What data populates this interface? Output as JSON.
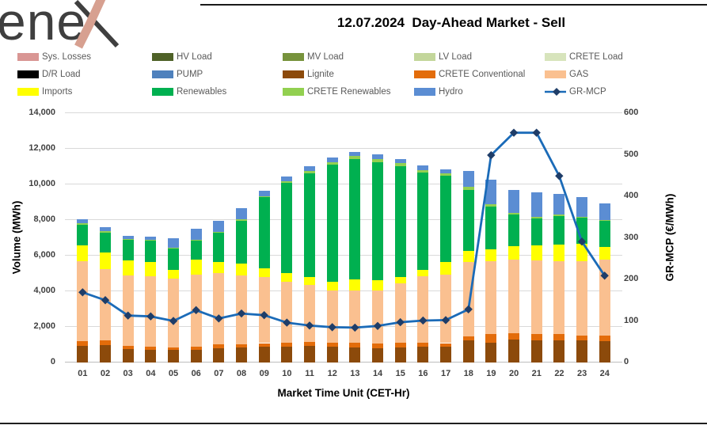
{
  "logo": {
    "brand": "enex"
  },
  "header": {
    "title": "12.07.2024  Day-Ahead Market - Sell"
  },
  "colors": {
    "grid": "#d9d9d9",
    "axis_text": "#3f3f3f",
    "legend_text": "#595959",
    "logo_pink": "#d7a090",
    "logo_dark": "#3f3f3f"
  },
  "legend": {
    "items": [
      {
        "label": "Sys. Losses",
        "color": "#D99694",
        "kind": "box"
      },
      {
        "label": "HV Load",
        "color": "#4F6228",
        "kind": "box"
      },
      {
        "label": "MV Load",
        "color": "#77933C",
        "kind": "box"
      },
      {
        "label": "LV Load",
        "color": "#C3D69B",
        "kind": "box"
      },
      {
        "label": "CRETE Load",
        "color": "#D7E4BC",
        "kind": "box"
      },
      {
        "label": "D/R Load",
        "color": "#000000",
        "kind": "box"
      },
      {
        "label": "PUMP",
        "color": "#4F81BD",
        "kind": "box"
      },
      {
        "label": "Lignite",
        "color": "#8C4A0B",
        "kind": "box"
      },
      {
        "label": "CRETE Conventional",
        "color": "#E36C0A",
        "kind": "box"
      },
      {
        "label": "GAS",
        "color": "#FAC090",
        "kind": "box"
      },
      {
        "label": "Imports",
        "color": "#FFFF00",
        "kind": "box"
      },
      {
        "label": "Renewables",
        "color": "#00B050",
        "kind": "box"
      },
      {
        "label": "CRETE Renewables",
        "color": "#92D050",
        "kind": "box"
      },
      {
        "label": "Hydro",
        "color": "#5B8DD3",
        "kind": "box"
      },
      {
        "label": "GR-MCP",
        "color": "#1B6BB8",
        "marker_color": "#1F3D68",
        "kind": "line"
      }
    ]
  },
  "chart_data": {
    "type": "bar",
    "subtype": "stacked-bars-with-line",
    "title": "12.07.2024  Day-Ahead Market - Sell",
    "xlabel": "Market Time Unit (CET-Hr)",
    "y_left": {
      "label": "Volume (MWh)",
      "min": 0,
      "max": 14000,
      "tick_step": 2000,
      "tick_values": [
        0,
        2000,
        4000,
        6000,
        8000,
        10000,
        12000,
        14000
      ],
      "tick_labels": [
        "0",
        "2,000",
        "4,000",
        "6,000",
        "8,000",
        "10,000",
        "12,000",
        "14,000"
      ]
    },
    "y_right": {
      "label": "GR-MCP (€/MWh)",
      "min": 0,
      "max": 600,
      "tick_step": 100,
      "tick_values": [
        0,
        100,
        200,
        300,
        400,
        500,
        600
      ],
      "tick_labels": [
        "0",
        "100",
        "200",
        "300",
        "400",
        "500",
        "600"
      ]
    },
    "categories": [
      "01",
      "02",
      "03",
      "04",
      "05",
      "06",
      "07",
      "08",
      "09",
      "10",
      "11",
      "12",
      "13",
      "14",
      "15",
      "16",
      "17",
      "18",
      "19",
      "20",
      "21",
      "22",
      "23",
      "24"
    ],
    "grid": true,
    "legend_position": "top",
    "series": [
      {
        "name": "Lignite",
        "color": "#8C4A0B",
        "values": [
          940,
          970,
          760,
          720,
          690,
          720,
          795,
          825,
          870,
          900,
          940,
          870,
          825,
          795,
          825,
          870,
          870,
          1240,
          1120,
          1310,
          1265,
          1265,
          1265,
          1205
        ]
      },
      {
        "name": "CRETE Conventional",
        "color": "#E36C0A",
        "values": [
          270,
          270,
          180,
          150,
          140,
          150,
          220,
          220,
          220,
          220,
          220,
          250,
          265,
          280,
          265,
          250,
          220,
          220,
          485,
          325,
          340,
          340,
          265,
          295
        ]
      },
      {
        "name": "GAS",
        "color": "#FAC090",
        "values": [
          4470,
          4000,
          3950,
          3975,
          3870,
          4080,
          4025,
          3845,
          3710,
          3430,
          3200,
          2915,
          2945,
          2960,
          3360,
          3725,
          3860,
          4165,
          4080,
          4140,
          4125,
          4080,
          4155,
          4270
        ]
      },
      {
        "name": "Imports",
        "color": "#FFFF00",
        "values": [
          890,
          930,
          840,
          805,
          510,
          820,
          610,
          650,
          490,
          490,
          440,
          515,
          620,
          590,
          350,
          370,
          705,
          645,
          675,
          765,
          840,
          925,
          970,
          740
        ]
      },
      {
        "name": "Renewables",
        "color": "#00B050",
        "values": [
          1150,
          1130,
          1170,
          1190,
          1200,
          1090,
          1650,
          2400,
          4000,
          5030,
          5815,
          6550,
          6785,
          6625,
          6230,
          5445,
          4815,
          3435,
          2385,
          1765,
          1515,
          1620,
          1475,
          1430
        ]
      },
      {
        "name": "CRETE Renewables",
        "color": "#92D050",
        "values": [
          100,
          90,
          50,
          60,
          55,
          45,
          45,
          100,
          50,
          100,
          150,
          150,
          175,
          190,
          175,
          150,
          145,
          145,
          150,
          100,
          100,
          75,
          60,
          75
        ]
      },
      {
        "name": "Hydro",
        "color": "#5B8DD3",
        "values": [
          220,
          210,
          150,
          155,
          515,
          615,
          590,
          630,
          290,
          270,
          265,
          250,
          225,
          250,
          235,
          250,
          235,
          910,
          1355,
          1300,
          1370,
          1180,
          1115,
          905
        ]
      }
    ],
    "line_series": {
      "name": "GR-MCP",
      "axis": "right",
      "color": "#1B6BB8",
      "marker": "diamond",
      "marker_color": "#1F3D68",
      "values": [
        169,
        150,
        113,
        111,
        100,
        126,
        106,
        118,
        114,
        96,
        89,
        85,
        84,
        88,
        97,
        101,
        102,
        128,
        499,
        553,
        553,
        449,
        291,
        209
      ]
    }
  }
}
